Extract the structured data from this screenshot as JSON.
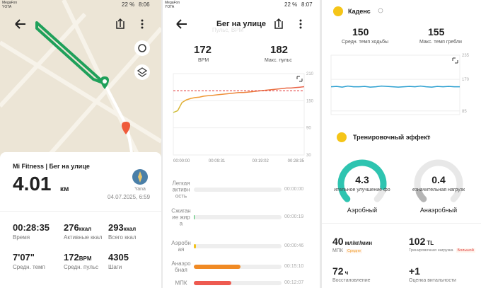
{
  "status_bars": [
    {
      "carrier": [
        "MegaFon",
        "YOTA"
      ],
      "battery": "22 %",
      "time": "8:06"
    },
    {
      "carrier": [
        "MegaFon",
        "YOTA"
      ],
      "battery": "22 %",
      "time": "8:07"
    }
  ],
  "summary": {
    "title": "Mi Fitness | Бег на улице",
    "distance": "4.01",
    "distance_unit": "км",
    "user": "Yana",
    "date": "04.07.2025, 6:59",
    "stats": [
      {
        "value": "00:28:35",
        "label": "Время"
      },
      {
        "value": "276",
        "unit": "ккал",
        "label": "Активные ккал"
      },
      {
        "value": "293",
        "unit": "ккал",
        "label": "Всего ккал"
      },
      {
        "value": "7'07\"",
        "label": "Средн. темп"
      },
      {
        "value": "172",
        "unit": "BPM",
        "label": "Средн. пульс"
      },
      {
        "value": "4305",
        "label": "Шаги"
      }
    ]
  },
  "heart_rate": {
    "title": "Бег на улице",
    "faded_title": "Пульс, BPM",
    "avg": 172,
    "avg_unit": "BPM",
    "max": 182,
    "max_label": "Макс. пульс",
    "chart": {
      "type": "line",
      "values": [
        124,
        128,
        146,
        152,
        155,
        157,
        158,
        160,
        161,
        162,
        163,
        164,
        165,
        166,
        167,
        168,
        168,
        169,
        170,
        171,
        172,
        173,
        174,
        175,
        176,
        177,
        178,
        178,
        179,
        180,
        181
      ],
      "ylim": [
        30,
        210
      ],
      "yticks": [
        210,
        150,
        90,
        30
      ],
      "xticks": [
        "00:00:00",
        "00:09:31",
        "00:19:02",
        "00:28:35"
      ]
    },
    "zones": [
      {
        "name": "Легкая активность",
        "time": "00:00:00",
        "color": "#e4e4e4"
      },
      {
        "name": "Сжигание жира",
        "time": "00:00:19",
        "color": "#3cc060"
      },
      {
        "name": "Аэробная",
        "time": "00:00:46",
        "color": "#f2c21c"
      },
      {
        "name": "Анаэробная",
        "time": "00:15:10",
        "color": "#f08a24"
      },
      {
        "name": "МПК",
        "time": "00:12:07",
        "color": "#ee5a50"
      }
    ]
  },
  "cadence": {
    "title": "Каденс",
    "avg": 150,
    "avg_label": "Средн. темп ходьбы",
    "max": 155,
    "max_label": "Макс. темп гребли",
    "chart": {
      "type": "line",
      "values": [
        150,
        151,
        149,
        152,
        150,
        150,
        151,
        149,
        150,
        152,
        151,
        150,
        149,
        150,
        151,
        150,
        152,
        150,
        149,
        151,
        150,
        151,
        150,
        150
      ],
      "ylim": [
        75,
        235
      ],
      "yticks": [
        235,
        170,
        85
      ]
    }
  },
  "training": {
    "title": "Тренировочный эффект",
    "scale": [
      0,
      5
    ],
    "gauges": [
      {
        "value": 4.3,
        "note": "ительное улучшение фо",
        "label": "Аэробный",
        "color": "#2ec4b0"
      },
      {
        "value": 0.4,
        "note": "езначительная нагрузк",
        "label": "Анаэробный",
        "color": "#b5b5b5"
      }
    ],
    "metrics": [
      {
        "value": "40",
        "unit": "мл/кг/мин",
        "label": "МПК",
        "badge": "Средне",
        "badge_color": "#f0a030"
      },
      {
        "value": "102",
        "unit": "TL",
        "label": "Тренировочная нагрузка",
        "badge": "Большой",
        "badge_color": "#e04040"
      },
      {
        "value": "72",
        "unit": "ч",
        "label": "Восстановление"
      },
      {
        "value": "+1",
        "label": "Оценка витальности"
      }
    ]
  }
}
